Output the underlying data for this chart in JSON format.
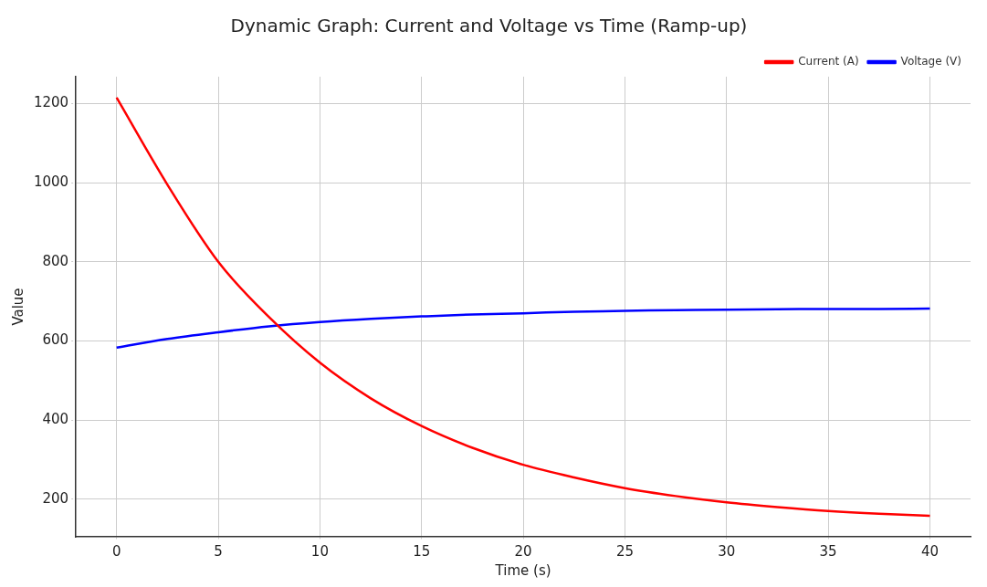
{
  "chart_data": {
    "type": "line",
    "title": "Dynamic Graph: Current and Voltage vs Time (Ramp-up)",
    "xlabel": "Time (s)",
    "ylabel": "Value",
    "x": [
      0,
      2.5,
      5,
      7.5,
      10,
      12.5,
      15,
      17.5,
      20,
      22.5,
      25,
      27.5,
      30,
      32.5,
      35,
      37.5,
      40
    ],
    "series": [
      {
        "name": "Current (A)",
        "color": "#ff0000",
        "values": [
          1215,
          995,
          800,
          660,
          545,
          455,
          385,
          330,
          287,
          255,
          228,
          208,
          192,
          180,
          170,
          163,
          158
        ]
      },
      {
        "name": "Voltage (V)",
        "color": "#0000ff",
        "values": [
          583,
          605,
          622,
          637,
          648,
          656,
          662,
          667,
          670,
          674,
          676,
          678,
          679,
          680,
          681,
          681,
          682
        ]
      }
    ],
    "xlim": [
      -2,
      42
    ],
    "xticks": [
      0,
      5,
      10,
      15,
      20,
      25,
      30,
      35,
      40
    ],
    "ylim": [
      105,
      1268
    ],
    "yticks": [
      200,
      400,
      600,
      800,
      1000,
      1200
    ],
    "grid": true,
    "legend": "top right",
    "marker": "none",
    "line_style": "solid"
  }
}
